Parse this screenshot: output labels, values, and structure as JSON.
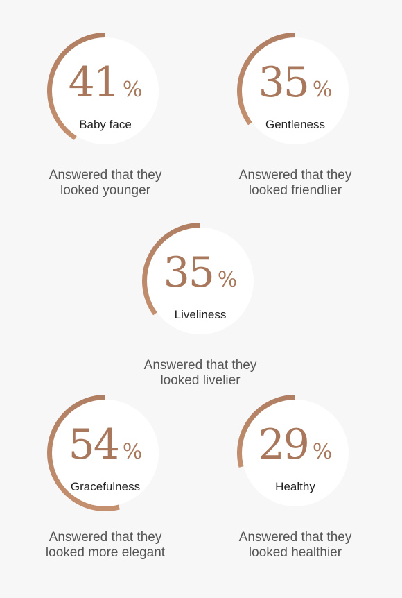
{
  "chart_data": {
    "type": "pie",
    "percent_sign": "%",
    "colors": {
      "arc": "#b07e62",
      "arc_light": "#c4906f",
      "circle": "#ffffff",
      "background": "#f7f7f7"
    },
    "items": [
      {
        "label": "Baby face",
        "value": 41,
        "caption": [
          "Answered that they",
          "looked younger"
        ]
      },
      {
        "label": "Gentleness",
        "value": 35,
        "caption": [
          "Answered that they",
          "looked friendlier"
        ]
      },
      {
        "label": "Liveliness",
        "value": 35,
        "caption": [
          "Answered that they",
          "looked livelier"
        ]
      },
      {
        "label": "Gracefulness",
        "value": 54,
        "caption": [
          "Answered that they",
          "looked more elegant"
        ]
      },
      {
        "label": "Healthy",
        "value": 29,
        "caption": [
          "Answered that they",
          "looked healthier"
        ]
      }
    ]
  }
}
